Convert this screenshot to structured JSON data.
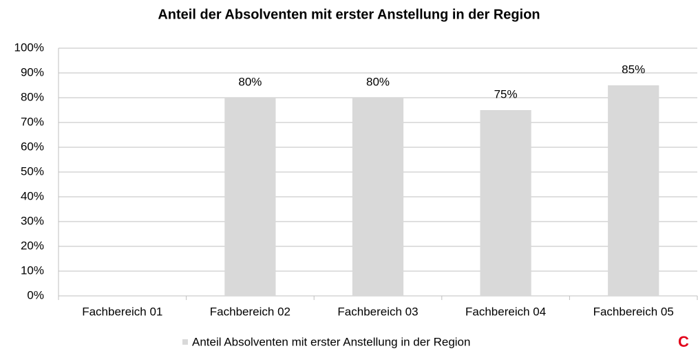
{
  "chart_data": {
    "type": "bar",
    "title": "Anteil der Absolventen mit erster Anstellung in der Region",
    "categories": [
      "Fachbereich 01",
      "Fachbereich 02",
      "Fachbereich 03",
      "Fachbereich 04",
      "Fachbereich 05"
    ],
    "series": [
      {
        "name": "Anteil Absolventen mit erster Anstellung in der Region",
        "color": "#d9d9d9",
        "values": [
          null,
          80,
          80,
          75,
          85
        ],
        "value_labels": [
          null,
          "80%",
          "80%",
          "75%",
          "85%"
        ]
      }
    ],
    "ylim": [
      0,
      100
    ],
    "yticks": [
      {
        "value": 0,
        "label": "0%"
      },
      {
        "value": 10,
        "label": "10%"
      },
      {
        "value": 20,
        "label": "20%"
      },
      {
        "value": 30,
        "label": "30%"
      },
      {
        "value": 40,
        "label": "40%"
      },
      {
        "value": 50,
        "label": "50%"
      },
      {
        "value": 60,
        "label": "60%"
      },
      {
        "value": 70,
        "label": "70%"
      },
      {
        "value": 80,
        "label": "80%"
      },
      {
        "value": 90,
        "label": "90%"
      },
      {
        "value": 100,
        "label": "100%"
      }
    ],
    "grid": true,
    "legend": "bottom",
    "annotations": [
      "C"
    ]
  }
}
